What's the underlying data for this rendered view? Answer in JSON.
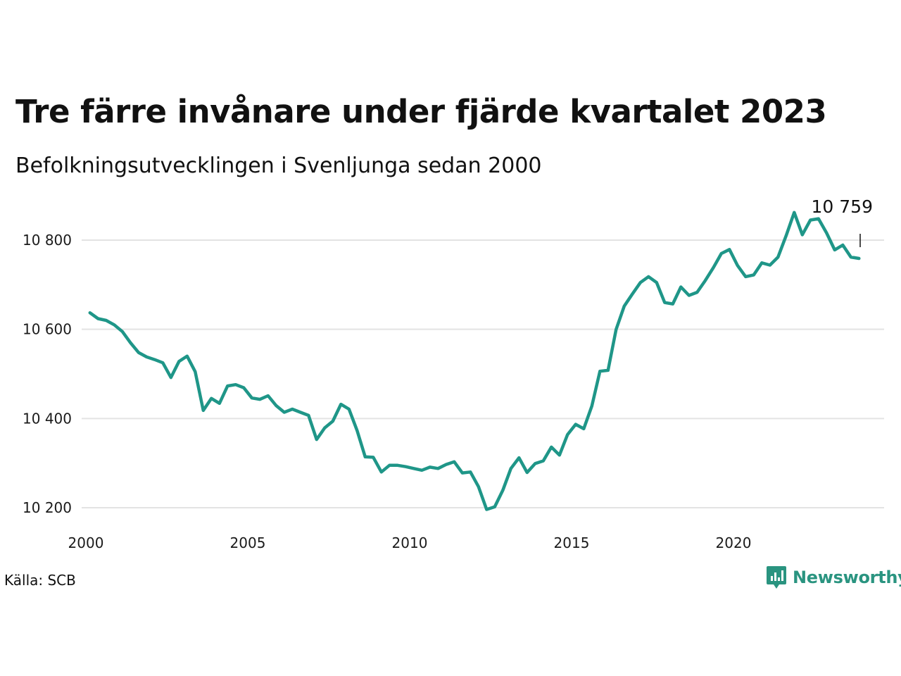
{
  "header": {
    "title": "Tre färre invånare under fjärde kvartalet 2023",
    "subtitle": "Befolkningsutvecklingen i Svenljunga sedan 2000"
  },
  "footer": {
    "source": "Källa: SCB",
    "brand": "Newsworthy"
  },
  "colors": {
    "line": "#1f9688",
    "grid": "#e3e3e3",
    "brand": "#2a9480"
  },
  "chart_data": {
    "type": "line",
    "title": "Tre färre invånare under fjärde kvartalet 2023",
    "subtitle": "Befolkningsutvecklingen i Svenljunga sedan 2000",
    "xlabel": "",
    "ylabel": "",
    "x_ticks": [
      2000,
      2005,
      2010,
      2015,
      2020
    ],
    "x_tick_labels": [
      "2000",
      "2005",
      "2010",
      "2015",
      "2020"
    ],
    "y_ticks": [
      10200,
      10400,
      10600,
      10800
    ],
    "y_tick_labels": [
      "10 200",
      "10 400",
      "10 600",
      "10 800"
    ],
    "xlim": [
      2000,
      2025
    ],
    "ylim": [
      10190,
      10880
    ],
    "grid": "horizontal",
    "end_label": "10 759",
    "series": [
      {
        "x": [
          2000.125,
          2000.375,
          2000.625,
          2000.875,
          2001.125,
          2001.375,
          2001.625,
          2001.875,
          2002.125,
          2002.375,
          2002.625,
          2002.875,
          2003.125,
          2003.375,
          2003.625,
          2003.875,
          2004.125,
          2004.375,
          2004.625,
          2004.875,
          2005.125,
          2005.375,
          2005.625,
          2005.875,
          2006.125,
          2006.375,
          2006.625,
          2006.875,
          2007.125,
          2007.375,
          2007.625,
          2007.875,
          2008.125,
          2008.375,
          2008.625,
          2008.875,
          2009.125,
          2009.375,
          2009.625,
          2009.875,
          2010.125,
          2010.375,
          2010.625,
          2010.875,
          2011.125,
          2011.375,
          2011.625,
          2011.875,
          2012.125,
          2012.375,
          2012.625,
          2012.875,
          2013.125,
          2013.375,
          2013.625,
          2013.875,
          2014.125,
          2014.375,
          2014.625,
          2014.875,
          2015.125,
          2015.375,
          2015.625,
          2015.875,
          2016.125,
          2016.375,
          2016.625,
          2016.875,
          2017.125,
          2017.375,
          2017.625,
          2017.875,
          2018.125,
          2018.375,
          2018.625,
          2018.875,
          2019.125,
          2019.375,
          2019.625,
          2019.875,
          2020.125,
          2020.375,
          2020.625,
          2020.875,
          2021.125,
          2021.375,
          2021.625,
          2021.875,
          2022.125,
          2022.375,
          2022.625,
          2022.875,
          2023.125,
          2023.375,
          2023.625,
          2023.875
        ],
        "values": [
          10637,
          10624,
          10620,
          10610,
          10595,
          10570,
          10548,
          10538,
          10532,
          10525,
          10492,
          10528,
          10540,
          10505,
          10418,
          10445,
          10434,
          10473,
          10476,
          10469,
          10446,
          10443,
          10451,
          10429,
          10414,
          10421,
          10414,
          10407,
          10353,
          10379,
          10394,
          10432,
          10421,
          10373,
          10314,
          10313,
          10280,
          10295,
          10295,
          10292,
          10288,
          10284,
          10291,
          10288,
          10297,
          10303,
          10278,
          10280,
          10247,
          10196,
          10202,
          10239,
          10288,
          10312,
          10279,
          10299,
          10305,
          10336,
          10318,
          10364,
          10387,
          10377,
          10428,
          10506,
          10508,
          10600,
          10652,
          10679,
          10705,
          10718,
          10705,
          10660,
          10657,
          10695,
          10676,
          10683,
          10709,
          10738,
          10770,
          10779,
          10743,
          10718,
          10722,
          10749,
          10744,
          10762,
          10810,
          10862,
          10812,
          10845,
          10848,
          10816,
          10778,
          10789,
          10762,
          10759
        ]
      }
    ]
  }
}
